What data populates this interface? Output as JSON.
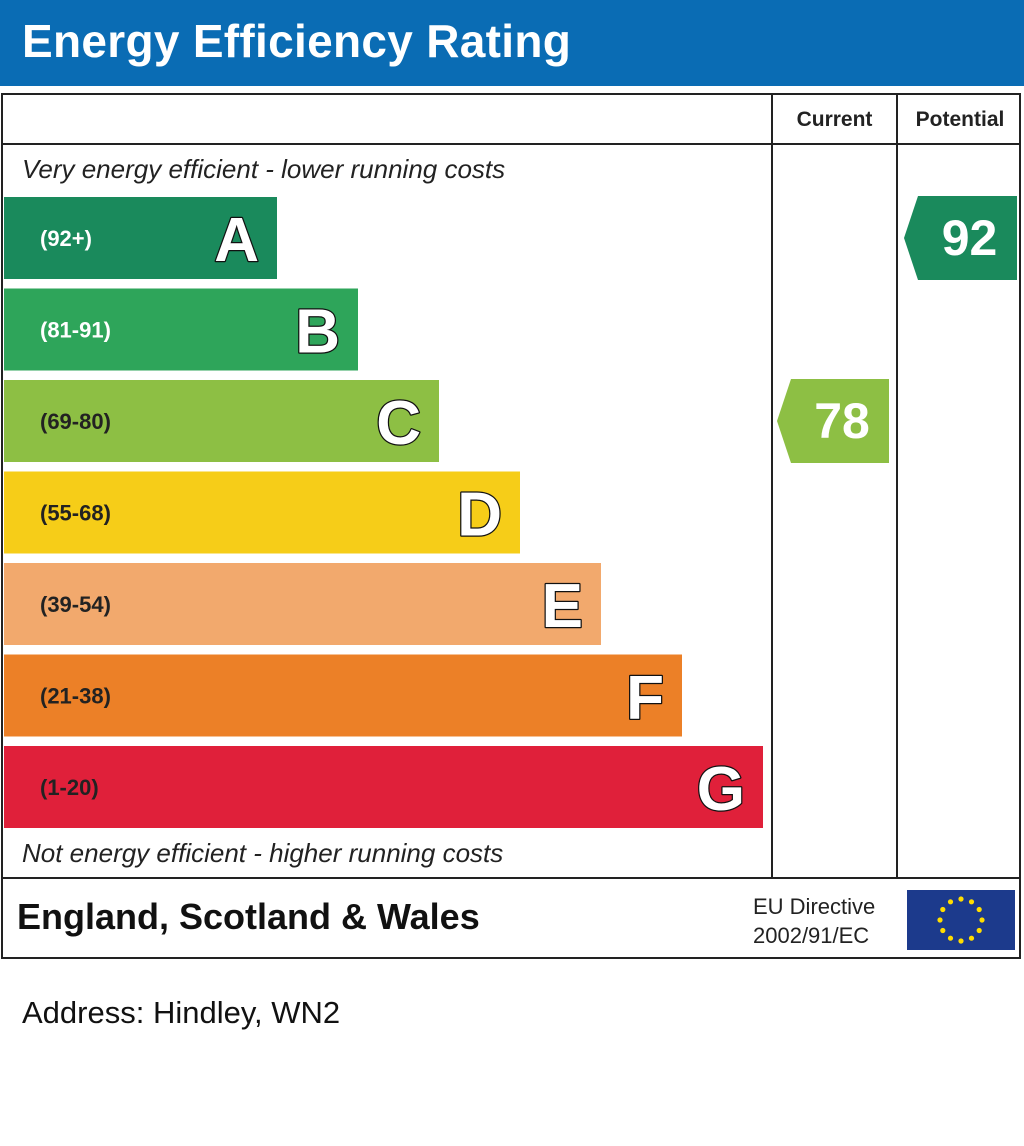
{
  "header": {
    "title": "Energy Efficiency Rating"
  },
  "columns": {
    "current": "Current",
    "potential": "Potential"
  },
  "captions": {
    "top": "Very energy efficient - lower running costs",
    "bottom": "Not energy efficient - higher running costs"
  },
  "footer": {
    "region": "England, Scotland & Wales",
    "directive_line1": "EU Directive",
    "directive_line2": "2002/91/EC"
  },
  "address": "Address: Hindley, WN2",
  "chart_data": {
    "type": "bar",
    "bands": [
      {
        "letter": "A",
        "range": "(92+)",
        "color": "#1a8a5c"
      },
      {
        "letter": "B",
        "range": "(81-91)",
        "color": "#2ea55a"
      },
      {
        "letter": "C",
        "range": "(69-80)",
        "color": "#8dbf44"
      },
      {
        "letter": "D",
        "range": "(55-68)",
        "color": "#f6cd18"
      },
      {
        "letter": "E",
        "range": "(39-54)",
        "color": "#f2a96d"
      },
      {
        "letter": "F",
        "range": "(21-38)",
        "color": "#ec8027"
      },
      {
        "letter": "G",
        "range": "(1-20)",
        "color": "#e0203a"
      }
    ],
    "current": {
      "value": 78,
      "band": "C",
      "color": "#8dbf44"
    },
    "potential": {
      "value": 92,
      "band": "A",
      "color": "#1a8a5c"
    }
  }
}
